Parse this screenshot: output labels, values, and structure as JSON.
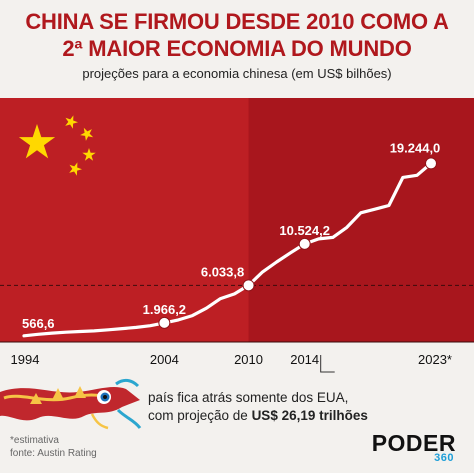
{
  "header": {
    "title_line1": "CHINA SE FIRMOU DESDE 2010 COMO A",
    "title_line2": "2ª MAIOR ECONOMIA DO MUNDO",
    "subtitle": "projeções para a economia chinesa (em US$ bilhões)"
  },
  "colors": {
    "flag_red": "#bd1f24",
    "band_red": "#a8161d",
    "title_red": "#b0181d",
    "star_yellow": "#ffd800",
    "line_white": "#ffffff",
    "brand_blue": "#1f9fd8"
  },
  "chart_data": {
    "type": "line",
    "title": "CHINA SE FIRMOU DESDE 2010 COMO A 2ª MAIOR ECONOMIA DO MUNDO",
    "subtitle": "projeções para a economia chinesa (em US$ bilhões)",
    "xlabel": "",
    "ylabel": "",
    "x_tick_labels": [
      "1994",
      "2004",
      "2010",
      "2014",
      "2023*"
    ],
    "x": [
      1994,
      1995,
      1996,
      1997,
      1998,
      1999,
      2000,
      2001,
      2002,
      2003,
      2004,
      2005,
      2006,
      2007,
      2008,
      2009,
      2010,
      2011,
      2012,
      2013,
      2014,
      2015,
      2016,
      2017,
      2018,
      2019,
      2020,
      2021,
      2022,
      2023
    ],
    "series": [
      {
        "values": [
          566.6,
          730,
          860,
          955,
          1030,
          1090,
          1210,
          1340,
          1470,
          1660,
          1966.2,
          2290,
          2750,
          3550,
          4600,
          5100,
          6033.8,
          7490,
          8560,
          9570,
          10524.2,
          11060,
          11230,
          12310,
          13890,
          14280,
          14690,
          17730,
          17960,
          19244.0
        ]
      }
    ],
    "labeled_points": [
      {
        "x": 1994,
        "label": "566,6"
      },
      {
        "x": 2004,
        "label": "1.966,2"
      },
      {
        "x": 2010,
        "label": "6.033,8"
      },
      {
        "x": 2014,
        "label": "10.524,2"
      },
      {
        "x": 2023,
        "label": "19.244,0"
      }
    ],
    "reference_line": "dashed horizontal line at the 2010 level (6.033,8), marking the split between the shaded bands",
    "xlim": [
      1994,
      2023
    ],
    "ylim": [
      0,
      22000
    ],
    "grid": false,
    "legend": "none"
  },
  "annotation": {
    "line1": "país fica atrás somente dos EUA,",
    "line2_prefix": "com projeção de ",
    "line2_bold": "US$ 26,19 trilhões"
  },
  "footnote": {
    "estimate": "*estimativa",
    "source": "fonte: Austin Rating"
  },
  "brand": {
    "name": "PODER",
    "number": "360"
  }
}
